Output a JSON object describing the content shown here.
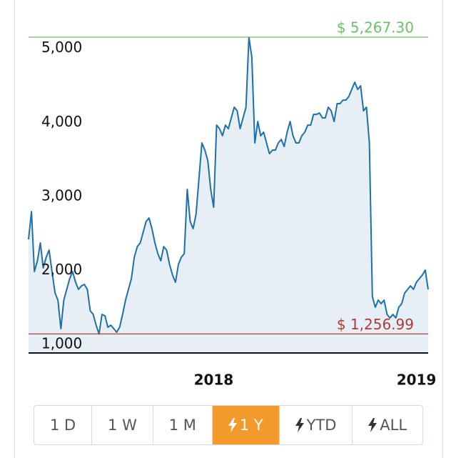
{
  "chart_data": {
    "type": "area",
    "values": [
      2535,
      2911,
      2100,
      2245,
      2487,
      2149,
      2294,
      2390,
      2100,
      1811,
      1714,
      1328,
      1714,
      1859,
      2004,
      2100,
      1956,
      1859,
      1907,
      1927,
      1859,
      1570,
      1521,
      1376,
      1256.99,
      1521,
      1502,
      1348,
      1376,
      1328,
      1280,
      1348,
      1521,
      1714,
      1859,
      2004,
      2294,
      2438,
      2487,
      2631,
      2776,
      2824,
      2680,
      2487,
      2342,
      2245,
      2438,
      2390,
      2197,
      2052,
      1956,
      2197,
      2294,
      2342,
      3211,
      2776,
      2680,
      2873,
      3355,
      3838,
      3741,
      3597,
      3211,
      2969,
      4079,
      4031,
      3935,
      4079,
      4031,
      4176,
      4321,
      4272,
      4031,
      4176,
      4321,
      5267.3,
      4996,
      3838,
      4128,
      3935,
      3983,
      3838,
      3693,
      3741,
      3741,
      3838,
      3886,
      3790,
      3983,
      4128,
      3935,
      3838,
      3838,
      3935,
      3983,
      4079,
      4079,
      4224,
      4224,
      4243,
      4176,
      4176,
      4321,
      4272,
      4128,
      4369,
      4369,
      4417,
      4417,
      4465,
      4562,
      4658,
      4562,
      4610,
      4272,
      4321,
      3838,
      1763,
      1618,
      1714,
      1666,
      1714,
      1521,
      1473,
      1521,
      1473,
      1618,
      1666,
      1811,
      1859,
      1907,
      1859,
      1956,
      2004,
      2052,
      2120,
      1859
    ],
    "color": "#1f6fa8",
    "fill": "#e6eef6",
    "xlim": [
      0,
      136
    ],
    "xticks": [
      {
        "value": 63,
        "label": "2018"
      },
      {
        "value": 132,
        "label": "2019"
      }
    ],
    "ylim": [
      1000,
      5750
    ],
    "yticks": [
      {
        "value": 5000,
        "label": "5,000"
      },
      {
        "value": 4000,
        "label": "4,000"
      },
      {
        "value": 3000,
        "label": "3,000"
      },
      {
        "value": 2000,
        "label": "2,000"
      },
      {
        "value": 1000,
        "label": "1,000"
      }
    ],
    "annotations": [
      {
        "value": 5267.3,
        "label": "$ 5,267.30",
        "color": "#6cbf6c"
      },
      {
        "value": 1256.99,
        "label": "$ 1,256.99",
        "color": "#b03a3a"
      }
    ]
  },
  "range_buttons": [
    {
      "label": "1 D",
      "icon": false
    },
    {
      "label": "1 W",
      "icon": false
    },
    {
      "label": "1 M",
      "icon": false
    },
    {
      "label": "1 Y",
      "icon": true
    },
    {
      "label": "YTD",
      "icon": true
    },
    {
      "label": "ALL",
      "icon": true
    }
  ],
  "active_button": 3
}
